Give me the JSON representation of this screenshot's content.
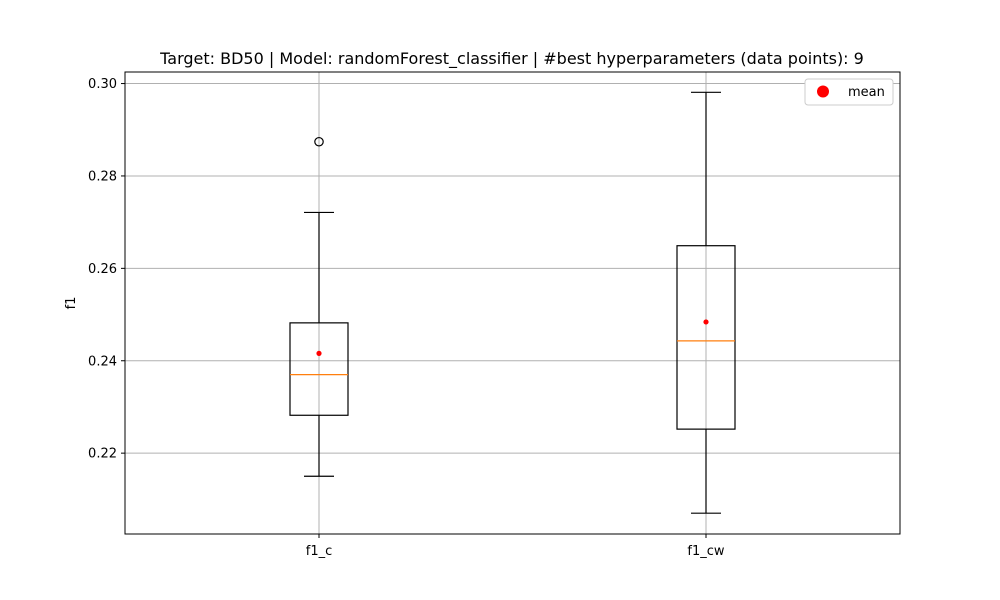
{
  "chart_data": {
    "type": "box",
    "title": "Target: BD50 | Model: randomForest_classifier | #best hyperparameters (data points): 9",
    "xlabel": "",
    "ylabel": "f1",
    "categories": [
      "f1_c",
      "f1_cw"
    ],
    "boxes": [
      {
        "name": "f1_c",
        "whisker_low": 0.215,
        "q1": 0.2282,
        "median": 0.237,
        "q3": 0.2482,
        "whisker_high": 0.2721,
        "mean": 0.2416,
        "outliers": [
          0.2874
        ]
      },
      {
        "name": "f1_cw",
        "whisker_low": 0.207,
        "q1": 0.2252,
        "median": 0.2443,
        "q3": 0.2649,
        "whisker_high": 0.2981,
        "mean": 0.2484,
        "outliers": []
      }
    ],
    "yticks": [
      0.22,
      0.24,
      0.26,
      0.28,
      0.3
    ],
    "ytick_labels": [
      "0.22",
      "0.24",
      "0.26",
      "0.28",
      "0.30"
    ],
    "ylim": [
      0.2025,
      0.3025
    ],
    "grid": true,
    "legend": {
      "label": "mean",
      "position": "top-right"
    },
    "colors": {
      "box": "#000000",
      "median": "#ff7f0e",
      "mean": "#ff0000",
      "grid": "#b0b0b0"
    }
  }
}
